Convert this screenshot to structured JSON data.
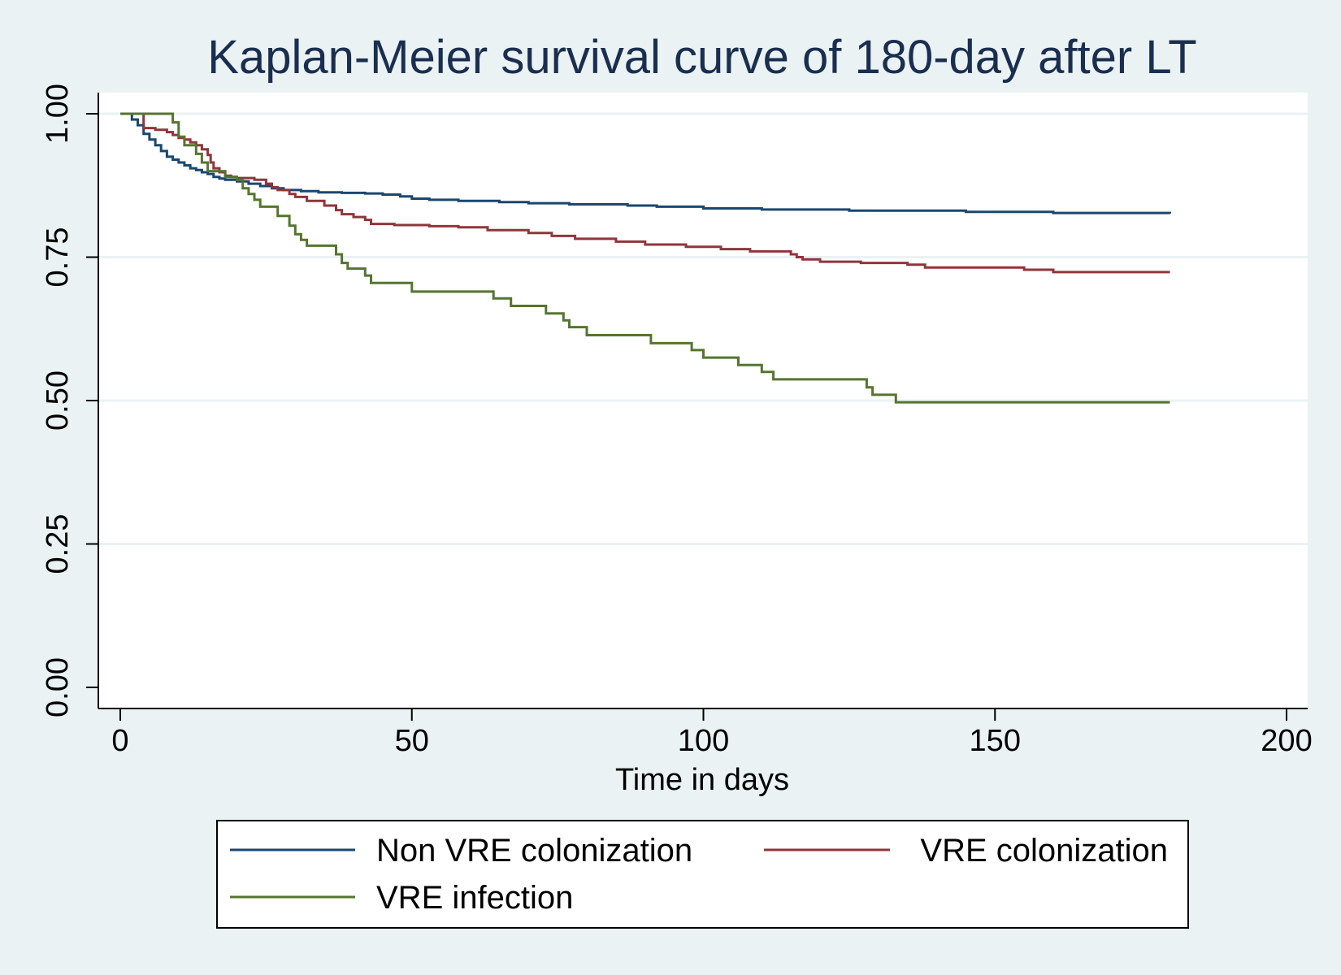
{
  "chart_data": {
    "type": "line",
    "title": "Kaplan-Meier survival curve of 180-day after LT",
    "xlabel": "Time in days",
    "ylabel": "",
    "xlim": [
      0,
      200
    ],
    "ylim": [
      0,
      1
    ],
    "x_ticks": [
      0,
      50,
      100,
      150,
      200
    ],
    "x_tick_labels": [
      "0",
      "50",
      "100",
      "150",
      "200"
    ],
    "y_ticks": [
      0,
      0.25,
      0.5,
      0.75,
      1
    ],
    "y_tick_labels": [
      "0.00",
      "0.25",
      "0.50",
      "0.75",
      "1.00"
    ],
    "grid": true,
    "legend_position": "bottom",
    "step": true,
    "series": [
      {
        "name": "Non VRE colonization",
        "color": "#1a476f",
        "points": [
          [
            0,
            1.0
          ],
          [
            2,
            0.99
          ],
          [
            3,
            0.98
          ],
          [
            4,
            0.965
          ],
          [
            5,
            0.955
          ],
          [
            6,
            0.945
          ],
          [
            7,
            0.935
          ],
          [
            8,
            0.925
          ],
          [
            9,
            0.92
          ],
          [
            10,
            0.915
          ],
          [
            11,
            0.91
          ],
          [
            12,
            0.905
          ],
          [
            13,
            0.902
          ],
          [
            14,
            0.898
          ],
          [
            15,
            0.895
          ],
          [
            16,
            0.89
          ],
          [
            17,
            0.887
          ],
          [
            18,
            0.885
          ],
          [
            20,
            0.882
          ],
          [
            22,
            0.878
          ],
          [
            24,
            0.874
          ],
          [
            26,
            0.87
          ],
          [
            28,
            0.867
          ],
          [
            31,
            0.865
          ],
          [
            34,
            0.863
          ],
          [
            38,
            0.862
          ],
          [
            42,
            0.861
          ],
          [
            45,
            0.859
          ],
          [
            48,
            0.856
          ],
          [
            50,
            0.852
          ],
          [
            53,
            0.85
          ],
          [
            58,
            0.848
          ],
          [
            65,
            0.846
          ],
          [
            70,
            0.844
          ],
          [
            77,
            0.842
          ],
          [
            87,
            0.84
          ],
          [
            92,
            0.838
          ],
          [
            100,
            0.835
          ],
          [
            110,
            0.833
          ],
          [
            125,
            0.831
          ],
          [
            145,
            0.829
          ],
          [
            160,
            0.827
          ],
          [
            180,
            0.826
          ]
        ]
      },
      {
        "name": "VRE colonization",
        "color": "#90353b",
        "points": [
          [
            0,
            1.0
          ],
          [
            4,
            0.975
          ],
          [
            6,
            0.972
          ],
          [
            8,
            0.968
          ],
          [
            9,
            0.963
          ],
          [
            10,
            0.958
          ],
          [
            11,
            0.955
          ],
          [
            12,
            0.95
          ],
          [
            13,
            0.945
          ],
          [
            14,
            0.938
          ],
          [
            15,
            0.928
          ],
          [
            15.5,
            0.915
          ],
          [
            16,
            0.905
          ],
          [
            17,
            0.898
          ],
          [
            18,
            0.892
          ],
          [
            19,
            0.89
          ],
          [
            20,
            0.888
          ],
          [
            23,
            0.885
          ],
          [
            25,
            0.878
          ],
          [
            26,
            0.872
          ],
          [
            27,
            0.867
          ],
          [
            29,
            0.86
          ],
          [
            30,
            0.855
          ],
          [
            32,
            0.848
          ],
          [
            35,
            0.84
          ],
          [
            37,
            0.832
          ],
          [
            38,
            0.825
          ],
          [
            40,
            0.82
          ],
          [
            42,
            0.815
          ],
          [
            43,
            0.808
          ],
          [
            47,
            0.806
          ],
          [
            53,
            0.804
          ],
          [
            58,
            0.802
          ],
          [
            63,
            0.797
          ],
          [
            70,
            0.792
          ],
          [
            74,
            0.787
          ],
          [
            78,
            0.782
          ],
          [
            85,
            0.777
          ],
          [
            90,
            0.772
          ],
          [
            97,
            0.768
          ],
          [
            103,
            0.764
          ],
          [
            108,
            0.76
          ],
          [
            115,
            0.755
          ],
          [
            116,
            0.75
          ],
          [
            117,
            0.746
          ],
          [
            120,
            0.742
          ],
          [
            127,
            0.74
          ],
          [
            135,
            0.737
          ],
          [
            138,
            0.732
          ],
          [
            155,
            0.728
          ],
          [
            160,
            0.724
          ],
          [
            180,
            0.724
          ]
        ]
      },
      {
        "name": "VRE infection",
        "color": "#55752f",
        "points": [
          [
            0,
            1.0
          ],
          [
            9,
            0.985
          ],
          [
            10,
            0.96
          ],
          [
            11,
            0.945
          ],
          [
            13,
            0.93
          ],
          [
            14,
            0.915
          ],
          [
            15,
            0.9
          ],
          [
            18,
            0.89
          ],
          [
            20,
            0.885
          ],
          [
            21,
            0.87
          ],
          [
            22,
            0.86
          ],
          [
            23,
            0.85
          ],
          [
            24,
            0.838
          ],
          [
            27,
            0.822
          ],
          [
            29,
            0.805
          ],
          [
            30,
            0.79
          ],
          [
            31,
            0.78
          ],
          [
            32,
            0.77
          ],
          [
            37,
            0.755
          ],
          [
            38,
            0.74
          ],
          [
            39,
            0.73
          ],
          [
            42,
            0.718
          ],
          [
            43,
            0.705
          ],
          [
            50,
            0.69
          ],
          [
            64,
            0.678
          ],
          [
            67,
            0.665
          ],
          [
            73,
            0.652
          ],
          [
            76,
            0.64
          ],
          [
            77,
            0.628
          ],
          [
            80,
            0.614
          ],
          [
            91,
            0.6
          ],
          [
            98,
            0.588
          ],
          [
            100,
            0.575
          ],
          [
            106,
            0.562
          ],
          [
            110,
            0.55
          ],
          [
            112,
            0.537
          ],
          [
            128,
            0.523
          ],
          [
            129,
            0.51
          ],
          [
            133,
            0.497
          ],
          [
            180,
            0.497
          ]
        ]
      }
    ]
  }
}
